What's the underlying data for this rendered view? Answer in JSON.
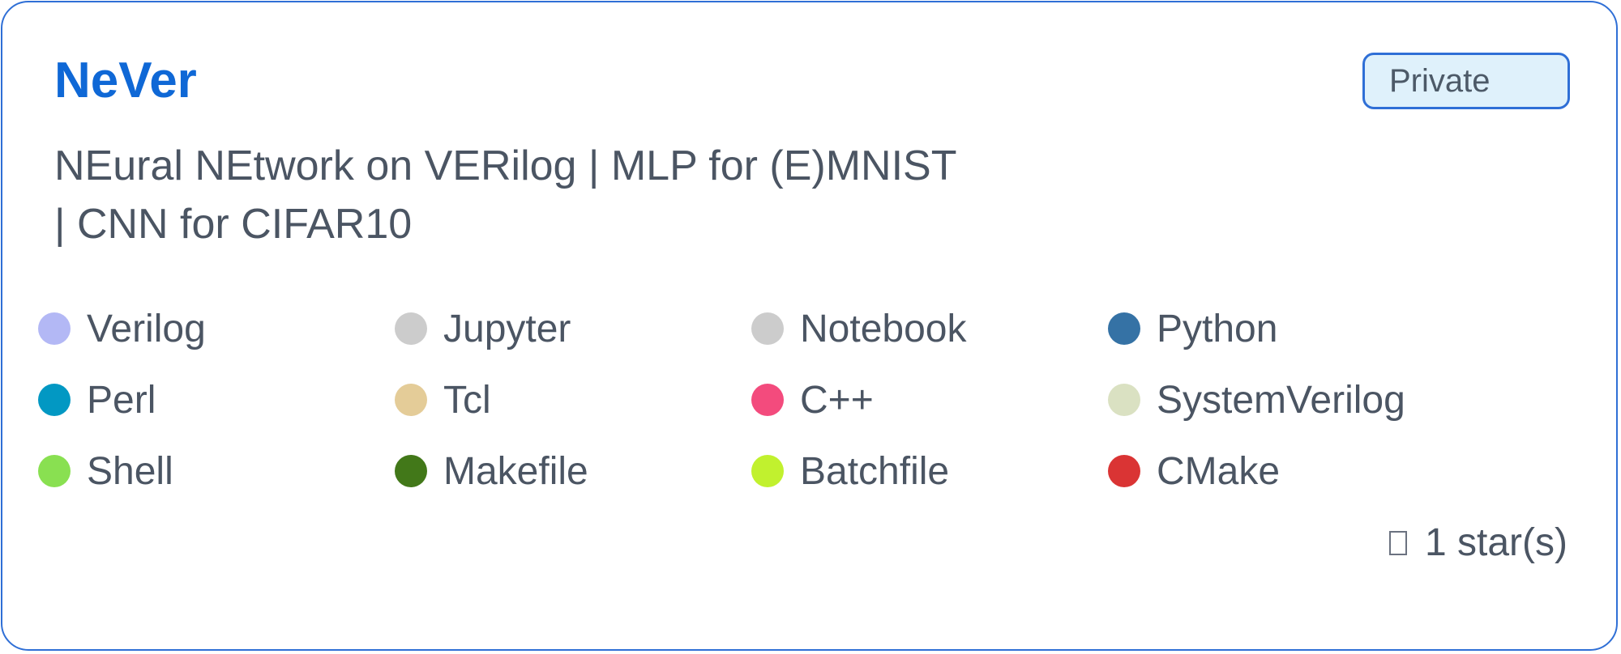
{
  "repo": {
    "name": "NeVer",
    "visibility": "Private",
    "description_line1": "NEural NEtwork on VERilog | MLP for (E)MNIST",
    "description_line2": "| CNN for CIFAR10",
    "stars": "1 star(s)"
  },
  "languages": [
    {
      "name": "Verilog",
      "color": "#b3b8f5"
    },
    {
      "name": "Jupyter",
      "color": "#cccccc"
    },
    {
      "name": "Notebook",
      "color": "#cccccc"
    },
    {
      "name": "Python",
      "color": "#3572a5"
    },
    {
      "name": "Perl",
      "color": "#0298c3"
    },
    {
      "name": "Tcl",
      "color": "#e4cc98"
    },
    {
      "name": "C++",
      "color": "#f34b7d"
    },
    {
      "name": "SystemVerilog",
      "color": "#dae1c2"
    },
    {
      "name": "Shell",
      "color": "#89e051"
    },
    {
      "name": "Makefile",
      "color": "#427819"
    },
    {
      "name": "Batchfile",
      "color": "#c1f12e"
    },
    {
      "name": "CMake",
      "color": "#da3434"
    }
  ],
  "colors": {
    "accent": "#0f68d6",
    "border": "#2f6fd6",
    "badge_bg": "#dff1fb",
    "text": "#4b5563"
  }
}
